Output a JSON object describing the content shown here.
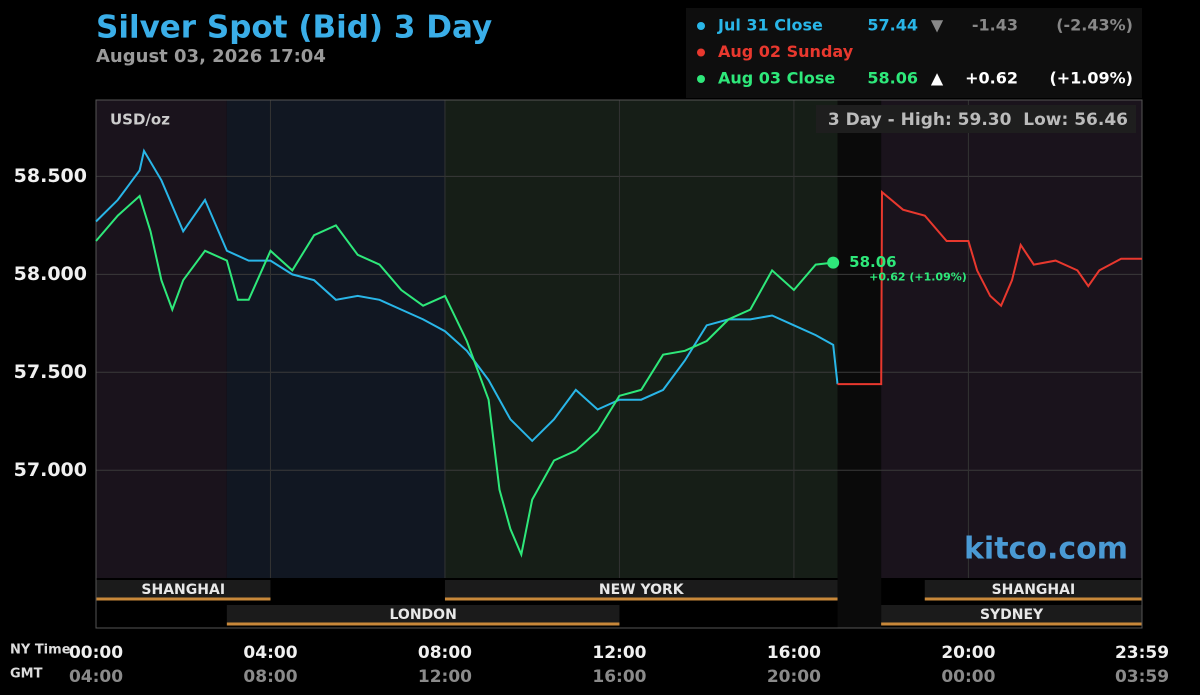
{
  "chart_data": {
    "type": "line",
    "title": "Silver Spot (Bid) 3 Day",
    "subtitle": "August 03, 2026 17:04",
    "unit_label": "USD/oz",
    "range_note": "3 Day - High: 59.30  Low: 56.46",
    "watermark": "kitco.com",
    "x_axis_label": "NY Time",
    "x2_axis_label": "GMT",
    "last_value_label": "58.06",
    "last_change_label": "+0.62 (+1.09%)",
    "xlim": [
      0,
      23.98
    ],
    "ylim": [
      56.45,
      58.89
    ],
    "yticks": [
      {
        "value": 57,
        "label": "57.000"
      },
      {
        "value": 57.5,
        "label": "57.500"
      },
      {
        "value": 58,
        "label": "58.000"
      },
      {
        "value": 58.5,
        "label": "58.500"
      }
    ],
    "xticks": [
      {
        "value": 0,
        "label": "00:00"
      },
      {
        "value": 4,
        "label": "04:00"
      },
      {
        "value": 8,
        "label": "08:00"
      },
      {
        "value": 12,
        "label": "12:00"
      },
      {
        "value": 16,
        "label": "16:00"
      },
      {
        "value": 20,
        "label": "20:00"
      },
      {
        "value": 23.98,
        "label": "23:59"
      }
    ],
    "x2ticks": [
      {
        "value": 0,
        "label": "04:00"
      },
      {
        "value": 4,
        "label": "08:00"
      },
      {
        "value": 8,
        "label": "12:00"
      },
      {
        "value": 12,
        "label": "16:00"
      },
      {
        "value": 16,
        "label": "20:00"
      },
      {
        "value": 20,
        "label": "00:00"
      },
      {
        "value": 23.98,
        "label": "03:59"
      }
    ],
    "grid": true,
    "backgrounds": [
      {
        "start": 0,
        "end": 3,
        "color": "#1a131c"
      },
      {
        "start": 3,
        "end": 8,
        "color": "#111722"
      },
      {
        "start": 8,
        "end": 17,
        "color": "#161e17"
      },
      {
        "start": 17,
        "end": 18,
        "color": "#0a0a0a"
      },
      {
        "start": 18,
        "end": 23.98,
        "color": "#1a131c"
      }
    ],
    "sessions": [
      {
        "name": "SHANGHAI",
        "start": 0,
        "end": 4,
        "row": 0
      },
      {
        "name": "NEW YORK",
        "start": 8,
        "end": 17,
        "row": 0
      },
      {
        "name": "SHANGHAI",
        "start": 19,
        "end": 23.98,
        "row": 0
      },
      {
        "name": "LONDON",
        "start": 3,
        "end": 12,
        "row": 1
      },
      {
        "name": "SYDNEY",
        "start": 18,
        "end": 23.98,
        "row": 1
      }
    ],
    "legend": [
      {
        "name": "Jul 31 Close",
        "close": "57.44",
        "arrow": "▼",
        "change": "-1.43",
        "pct": "(-2.43%)"
      },
      {
        "name": "Aug 02 Sunday"
      },
      {
        "name": "Aug 03 Close",
        "close": "58.06",
        "arrow": "▲",
        "change": "+0.62",
        "pct": "(+1.09%)"
      }
    ],
    "series": [
      {
        "name": "Jul 31 Close",
        "color": "#29b6e8",
        "x": [
          0,
          0.5,
          1,
          1.1,
          1.5,
          2,
          2.5,
          3,
          3.5,
          4,
          4.5,
          5,
          5.5,
          6,
          6.5,
          7,
          7.5,
          8,
          8.5,
          9,
          9.5,
          10,
          10.5,
          11,
          11.5,
          12,
          12.5,
          13,
          13.5,
          14,
          14.5,
          15,
          15.5,
          16,
          16.5,
          16.9,
          17
        ],
        "values": [
          58.27,
          58.38,
          58.53,
          58.63,
          58.48,
          58.22,
          58.38,
          58.12,
          58.07,
          58.07,
          58,
          57.97,
          57.87,
          57.89,
          57.87,
          57.82,
          57.77,
          57.71,
          57.61,
          57.46,
          57.26,
          57.15,
          57.26,
          57.41,
          57.31,
          57.36,
          57.36,
          57.41,
          57.56,
          57.74,
          57.77,
          57.77,
          57.79,
          57.74,
          57.69,
          57.64,
          57.44
        ]
      },
      {
        "name": "Aug 02 Sunday",
        "color": "#e8382e",
        "x": [
          17,
          18,
          18.02,
          18.5,
          19,
          19.5,
          20,
          20.2,
          20.5,
          20.75,
          21,
          21.2,
          21.5,
          22,
          22.5,
          22.75,
          23,
          23.5,
          23.98
        ],
        "values": [
          57.44,
          57.44,
          58.42,
          58.33,
          58.3,
          58.17,
          58.17,
          58.02,
          57.89,
          57.84,
          57.97,
          58.15,
          58.05,
          58.07,
          58.02,
          57.94,
          58.02,
          58.08,
          58.08
        ]
      },
      {
        "name": "Aug 03 Close",
        "color": "#2ee87a",
        "x": [
          0,
          0.5,
          1,
          1.25,
          1.5,
          1.75,
          2,
          2.5,
          3,
          3.25,
          3.5,
          4,
          4.5,
          5,
          5.5,
          6,
          6.5,
          7,
          7.5,
          8,
          8.5,
          9,
          9.25,
          9.5,
          9.75,
          10,
          10.5,
          11,
          11.5,
          12,
          12.5,
          13,
          13.5,
          14,
          14.5,
          15,
          15.5,
          16,
          16.5,
          16.9
        ],
        "values": [
          58.17,
          58.3,
          58.4,
          58.22,
          57.97,
          57.82,
          57.97,
          58.12,
          58.07,
          57.87,
          57.87,
          58.12,
          58.02,
          58.2,
          58.25,
          58.1,
          58.05,
          57.92,
          57.84,
          57.89,
          57.66,
          57.36,
          56.9,
          56.7,
          56.57,
          56.85,
          57.05,
          57.1,
          57.2,
          57.38,
          57.41,
          57.59,
          57.61,
          57.66,
          57.77,
          57.82,
          58.02,
          57.92,
          58.05,
          58.06
        ]
      }
    ]
  }
}
